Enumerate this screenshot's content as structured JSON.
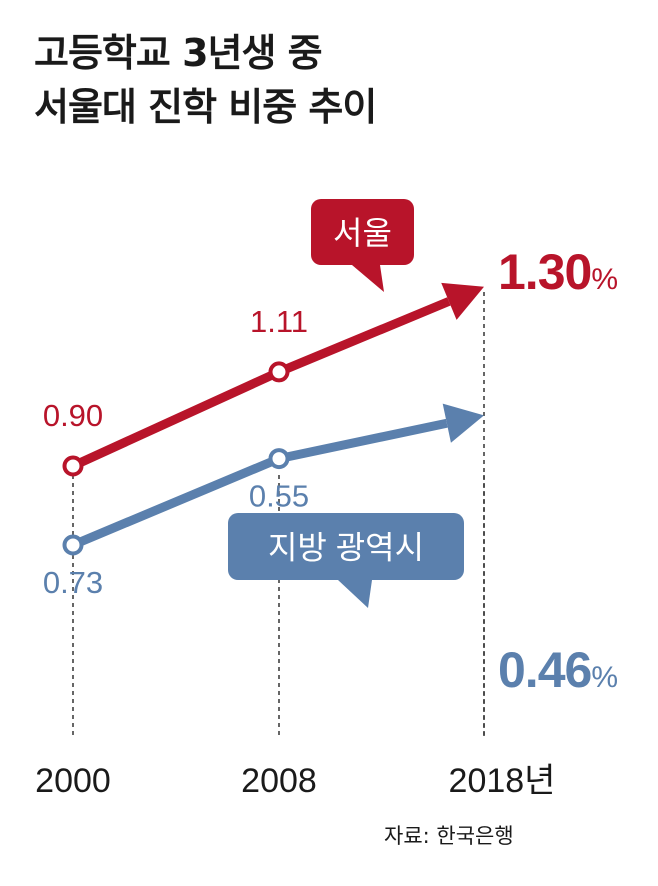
{
  "title_lines": [
    "고등학교 3년생 중",
    "서울대 진학 비중 추이"
  ],
  "source": "자료: 한국은행",
  "colors": {
    "seoul": "#b8142a",
    "regional": "#5b80ad",
    "text": "#1a1a1a",
    "guide": "#333333"
  },
  "chart_data": {
    "type": "line",
    "title": "고등학교 3년생 중 서울대 진학 비중 추이",
    "x": [
      2000,
      2008,
      2018
    ],
    "x_tick_labels": [
      "2000",
      "2008",
      "2018년"
    ],
    "series": [
      {
        "name": "서울",
        "values": [
          0.9,
          1.11,
          1.3
        ],
        "labels": [
          "0.90",
          "1.11",
          "1.30"
        ],
        "unit": "%"
      },
      {
        "name": "지방 광역시",
        "values": [
          0.73,
          0.55,
          0.46
        ],
        "labels": [
          "0.73",
          "0.55",
          "0.46"
        ],
        "unit": "%"
      }
    ],
    "grid": false,
    "legend": "callout bubbles on lines"
  }
}
